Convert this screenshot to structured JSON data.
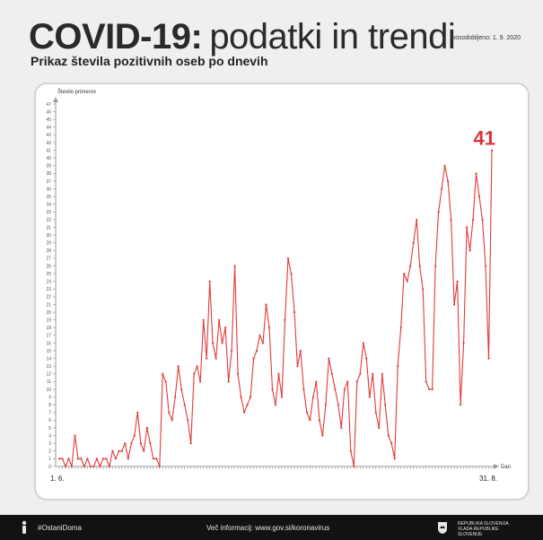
{
  "header": {
    "title_bold": "COVID-19:",
    "title_rest": "podatki in trendi",
    "updated": "posodobljeno: 1. 9. 2020",
    "subtitle": "Prikaz števila pozitivnih oseb po dnevih"
  },
  "chart_data": {
    "type": "line",
    "ylabel": "Število primerov",
    "xlabel": "Dan",
    "x_start_label": "1. 6.",
    "x_end_label": "31. 8.",
    "last_value_label": "41",
    "ylim": [
      0,
      47
    ],
    "y_ticks": [
      0,
      1,
      2,
      3,
      4,
      5,
      6,
      7,
      8,
      9,
      10,
      11,
      12,
      13,
      14,
      15,
      16,
      17,
      18,
      19,
      20,
      21,
      22,
      23,
      24,
      25,
      26,
      27,
      28,
      29,
      30,
      31,
      32,
      33,
      34,
      35,
      36,
      37,
      38,
      39,
      40,
      41,
      42,
      43,
      44,
      45,
      46,
      47
    ],
    "series": [
      {
        "color": "#e03a3a",
        "values": [
          1,
          1,
          0,
          1,
          0,
          4,
          1,
          1,
          0,
          1,
          0,
          0,
          1,
          0,
          1,
          1,
          0,
          2,
          1,
          2,
          2,
          3,
          1,
          3,
          4,
          7,
          3,
          2,
          5,
          3,
          1,
          1,
          0,
          12,
          11,
          7,
          6,
          9,
          13,
          10,
          8,
          6,
          3,
          12,
          13,
          11,
          19,
          14,
          24,
          16,
          14,
          19,
          16,
          18,
          11,
          15,
          26,
          12,
          9,
          7,
          8,
          9,
          14,
          15,
          17,
          16,
          21,
          18,
          10,
          8,
          12,
          9,
          19,
          27,
          25,
          20,
          13,
          15,
          10,
          7,
          6,
          9,
          11,
          6,
          4,
          8,
          14,
          12,
          10,
          8,
          5,
          10,
          11,
          2,
          0,
          11,
          12,
          16,
          14,
          9,
          12,
          7,
          5,
          12,
          8,
          4,
          3,
          1,
          13,
          18,
          25,
          24,
          26,
          29,
          32,
          26,
          23,
          11,
          10,
          10,
          26,
          33,
          36,
          39,
          37,
          32,
          21,
          24,
          8,
          16,
          31,
          28,
          32,
          38,
          35,
          32,
          26,
          14,
          41
        ]
      }
    ]
  },
  "footer": {
    "hashtag": "#OstaniDoma",
    "info": "Več informacij: www.gov.si/koronavirus",
    "gov": "REPUBLIKA SLOVENIJA VLADA REPUBLIKE SLOVENIJE"
  },
  "colors": {
    "line": "#e03a3a",
    "accent_label": "#d8343b",
    "axis": "#9a9a9a"
  }
}
